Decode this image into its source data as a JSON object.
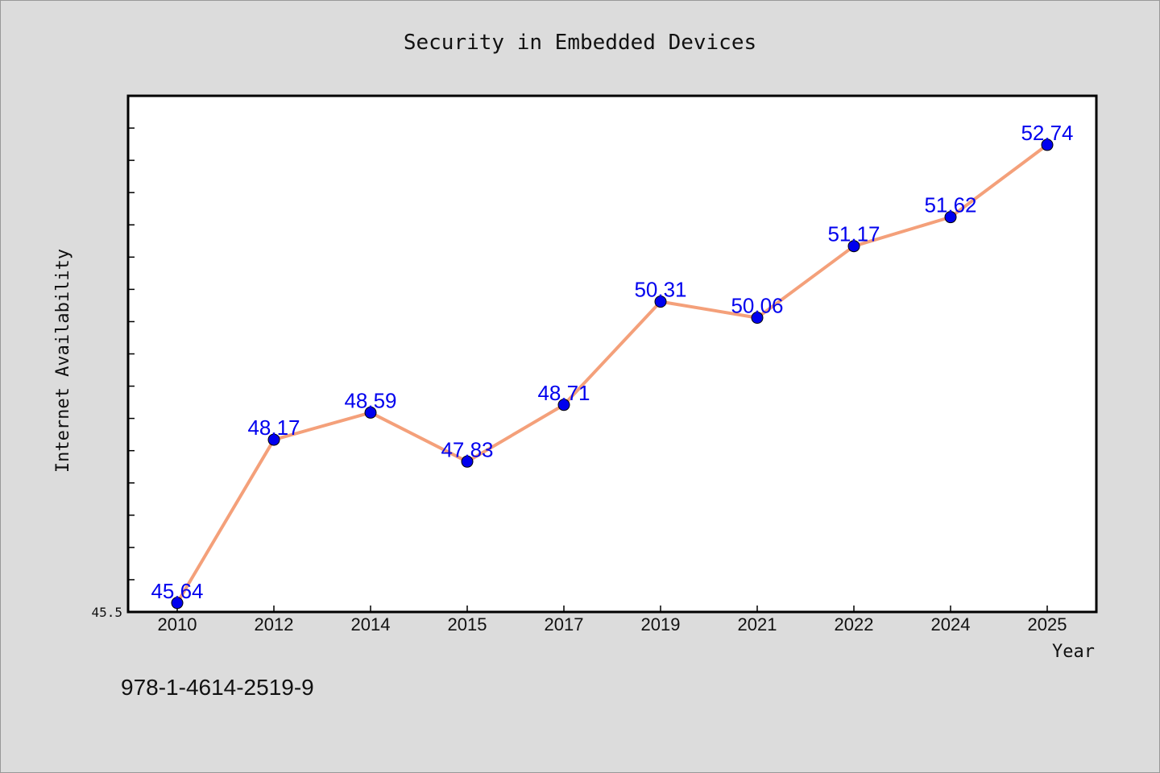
{
  "chart_data": {
    "type": "line",
    "title": "Security in Embedded Devices",
    "xlabel": "Year",
    "ylabel": "Internet Availability",
    "categories": [
      "2010",
      "2012",
      "2014",
      "2015",
      "2017",
      "2019",
      "2021",
      "2022",
      "2024",
      "2025"
    ],
    "series": [
      {
        "values": [
          45.64,
          48.17,
          48.59,
          47.83,
          48.71,
          50.31,
          50.06,
          51.17,
          51.62,
          52.74
        ],
        "line_color": "#f4a07a",
        "marker_color": "#0000ee",
        "label_color": "#0000ee"
      }
    ],
    "data_labels": [
      "45.64",
      "48.17",
      "48.59",
      "47.83",
      "48.71",
      "50.31",
      "50.06",
      "51.17",
      "51.62",
      "52.74"
    ],
    "ylim": [
      45.5,
      53.5
    ],
    "y_tick_labels": [
      "45.5"
    ],
    "y_minor_tick_step": 0.5,
    "grid": false,
    "legend": "none"
  },
  "footer": {
    "text": "978-1-4614-2519-9"
  },
  "colors": {
    "background": "#dcdcdc",
    "plot_background": "#ffffff",
    "axis": "#000000"
  }
}
